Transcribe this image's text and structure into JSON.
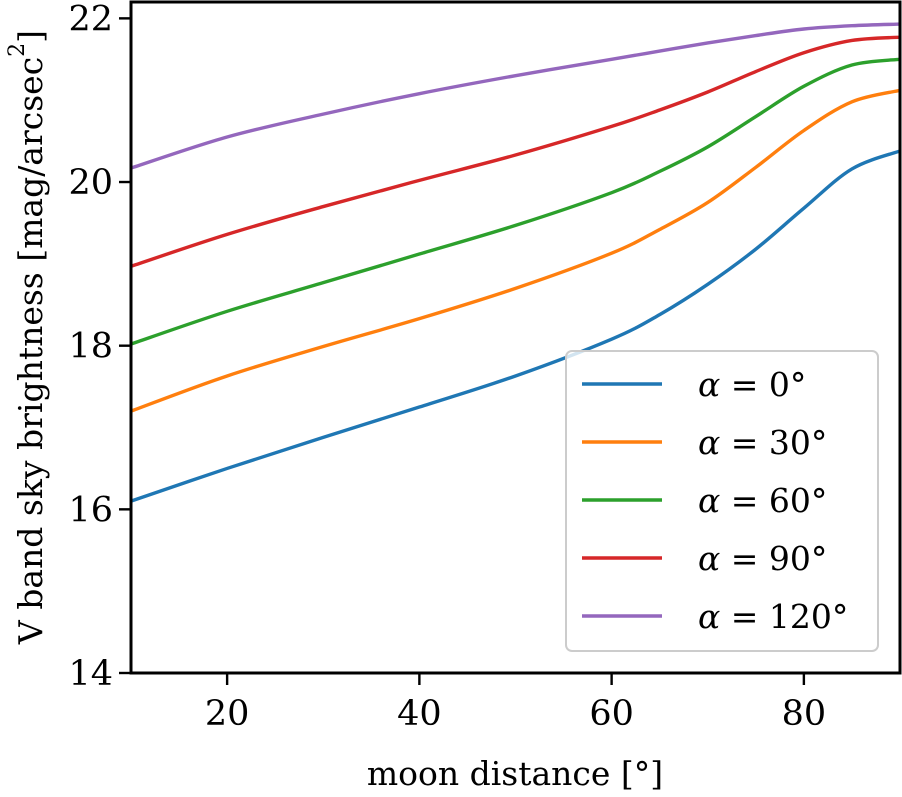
{
  "chart_data": {
    "type": "line",
    "title": "",
    "xlabel": "moon distance [°]",
    "ylabel": "V band sky brightness [mag/arcsec²]",
    "xlim": [
      10,
      90
    ],
    "ylim": [
      14,
      22.2
    ],
    "xticks": [
      20,
      40,
      60,
      80
    ],
    "xtick_labels": [
      "20",
      "40",
      "60",
      "80"
    ],
    "yticks": [
      14,
      16,
      18,
      20,
      22
    ],
    "ytick_labels": [
      "14",
      "16",
      "18",
      "20",
      "22"
    ],
    "grid": false,
    "legend_position": "lower-right",
    "x": [
      10,
      20,
      30,
      40,
      50,
      60,
      65,
      70,
      75,
      80,
      85,
      90
    ],
    "series": [
      {
        "name": "α = 0°",
        "color": "#1f77b4",
        "values": [
          16.1,
          16.5,
          16.88,
          17.25,
          17.63,
          18.08,
          18.38,
          18.75,
          19.18,
          19.68,
          20.16,
          20.38
        ]
      },
      {
        "name": "α = 30°",
        "color": "#ff7f0e",
        "values": [
          17.2,
          17.63,
          17.99,
          18.33,
          18.7,
          19.13,
          19.42,
          19.75,
          20.18,
          20.63,
          20.98,
          21.12
        ]
      },
      {
        "name": "α = 60°",
        "color": "#2ca02c",
        "values": [
          18.02,
          18.42,
          18.77,
          19.12,
          19.47,
          19.87,
          20.13,
          20.43,
          20.8,
          21.17,
          21.43,
          21.5
        ]
      },
      {
        "name": "α = 90°",
        "color": "#d62728",
        "values": [
          18.97,
          19.36,
          19.7,
          20.02,
          20.33,
          20.68,
          20.88,
          21.1,
          21.35,
          21.58,
          21.73,
          21.77
        ]
      },
      {
        "name": "α = 120°",
        "color": "#9467bd",
        "values": [
          20.17,
          20.55,
          20.83,
          21.08,
          21.3,
          21.5,
          21.6,
          21.7,
          21.79,
          21.87,
          21.91,
          21.93
        ]
      }
    ],
    "legend_entries": [
      {
        "prefix": "α",
        "rest": " = 0°"
      },
      {
        "prefix": "α",
        "rest": " = 30°"
      },
      {
        "prefix": "α",
        "rest": " = 60°"
      },
      {
        "prefix": "α",
        "rest": " = 90°"
      },
      {
        "prefix": "α",
        "rest": " = 120°"
      }
    ]
  }
}
